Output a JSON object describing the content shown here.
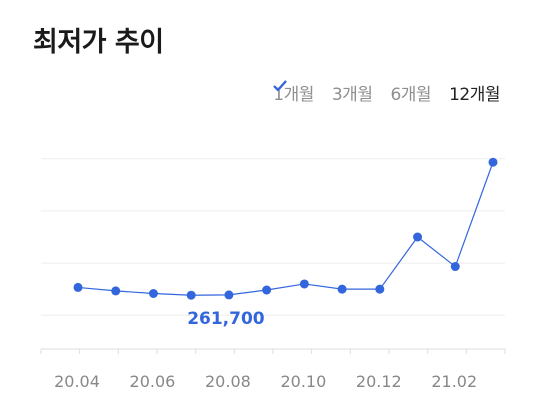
{
  "title": "최저가 추이",
  "periods": [
    {
      "label": "1개월",
      "active": false
    },
    {
      "label": "3개월",
      "active": false
    },
    {
      "label": "6개월",
      "active": false
    },
    {
      "label": "12개월",
      "active": true
    }
  ],
  "colors": {
    "accent": "#3366dd",
    "inactive_check": "#cccccc",
    "grid": "#eeeeee",
    "tick_label": "#888888"
  },
  "chart_data": {
    "type": "line",
    "x_labels": [
      "20.04",
      "20.06",
      "20.08",
      "20.10",
      "20.12",
      "21.02"
    ],
    "points_count": 12,
    "values": [
      266000,
      264000,
      262500,
      261500,
      261700,
      264500,
      268000,
      265000,
      265000,
      295000,
      278000,
      338000
    ],
    "highlight": {
      "index": 4,
      "label": "261,700"
    },
    "ylim": [
      230000,
      360000
    ],
    "grid": true,
    "gridlines": [
      250000,
      280000,
      310000,
      340000
    ]
  }
}
